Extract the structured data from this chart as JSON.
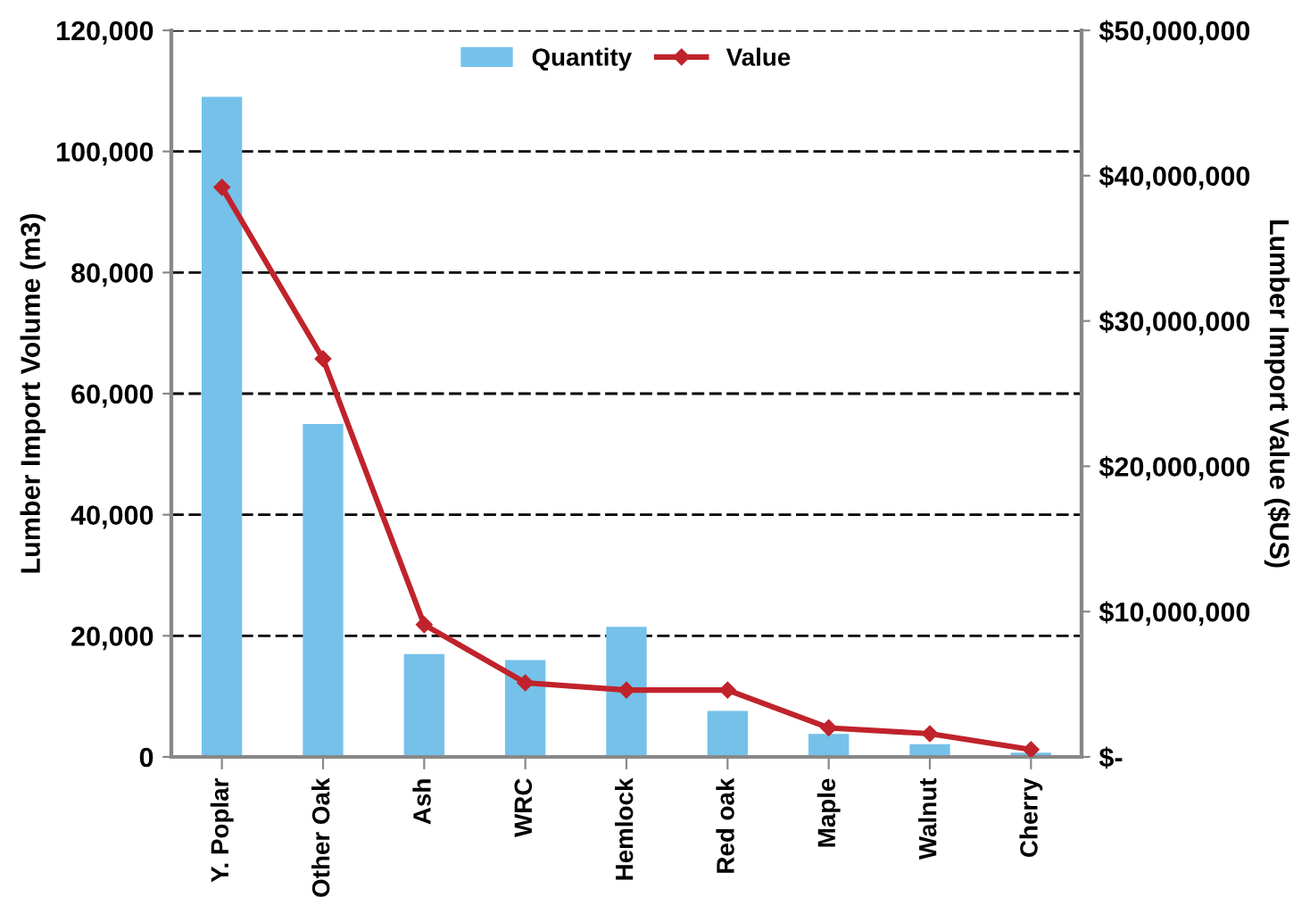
{
  "chart_data": {
    "type": "bar",
    "categories": [
      "Y. Poplar",
      "Other Oak",
      "Ash",
      "WRC",
      "Hemlock",
      "Red oak",
      "Maple",
      "Walnut",
      "Cherry"
    ],
    "series": [
      {
        "name": "Quantity",
        "color": "#75c1ea",
        "values": [
          109000,
          55000,
          17000,
          16000,
          21500,
          7600,
          3800,
          2100,
          700
        ]
      },
      {
        "name": "Value",
        "type": "line",
        "axis": "y2",
        "color": "#c0232b",
        "marker": "diamond",
        "values": [
          39200000,
          27400000,
          9100000,
          5100000,
          4600000,
          4600000,
          2000000,
          1600000,
          500000
        ]
      }
    ],
    "ylabel": "Lumber Import Volume (m3)",
    "y2label": "Lumber Import Value ($US)",
    "ylim": [
      0,
      120000
    ],
    "yticks": [
      {
        "value": 0,
        "label": "0"
      },
      {
        "value": 20000,
        "label": "20,000"
      },
      {
        "value": 40000,
        "label": "40,000"
      },
      {
        "value": 60000,
        "label": "60,000"
      },
      {
        "value": 80000,
        "label": "80,000"
      },
      {
        "value": 100000,
        "label": "100,000"
      },
      {
        "value": 120000,
        "label": "120,000"
      }
    ],
    "y2lim": [
      0,
      50000000
    ],
    "y2ticks": [
      {
        "value": 0,
        "label": "$-"
      },
      {
        "value": 10000000,
        "label": "$10,000,000"
      },
      {
        "value": 20000000,
        "label": "$20,000,000"
      },
      {
        "value": 30000000,
        "label": "$30,000,000"
      },
      {
        "value": 40000000,
        "label": "$40,000,000"
      },
      {
        "value": 50000000,
        "label": "$50,000,000"
      }
    ],
    "grid": "y",
    "legend": "top"
  }
}
